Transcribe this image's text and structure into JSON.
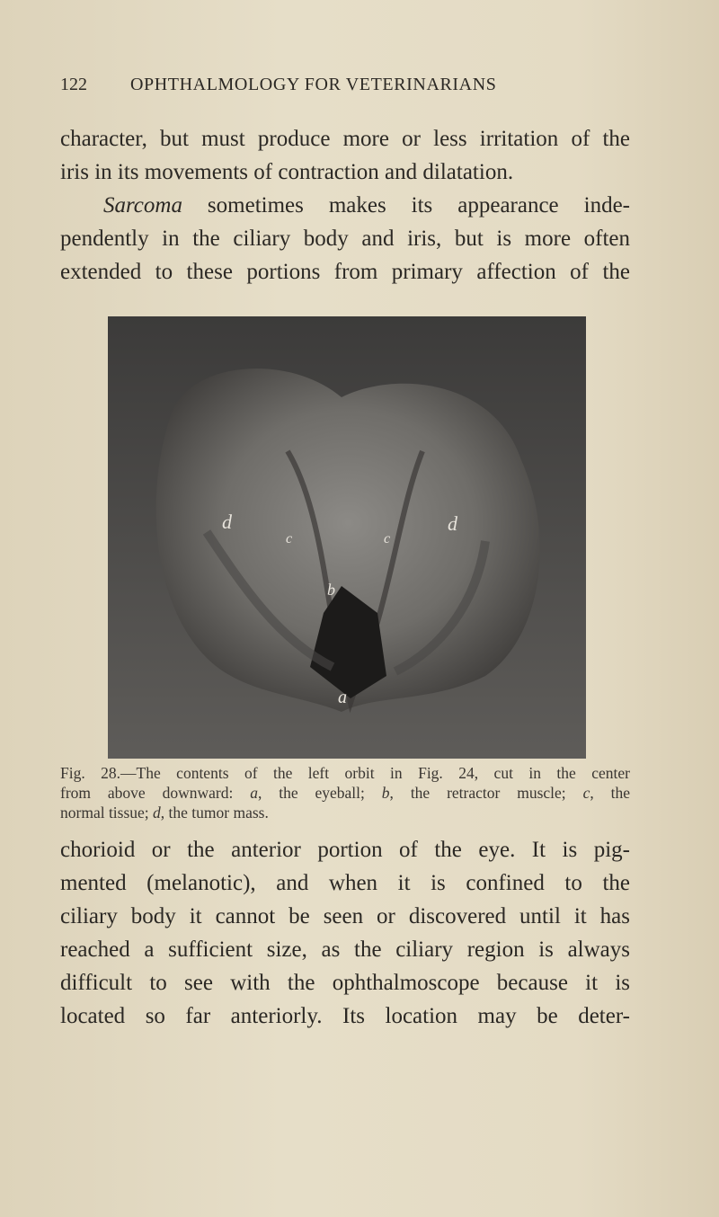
{
  "header": {
    "page_number": "122",
    "running_title": "OPHTHALMOLOGY FOR VETERINARIANS"
  },
  "body_top": {
    "lines": [
      [
        "character, but must produce more or less irritation of the"
      ],
      [
        "iris in its movements of contraction and dilatation."
      ],
      [
        {
          "text": "Sarcoma",
          "italic": true
        },
        " sometimes makes its appearance inde-"
      ],
      [
        "pendently in the ciliary body and iris, but is more often"
      ],
      [
        "extended to these portions from primary affection of the"
      ]
    ]
  },
  "figure": {
    "labels": [
      "d",
      "c",
      "c",
      "d",
      "b",
      "a"
    ],
    "caption": {
      "lines": [
        [
          "Fig. 28.—The contents of the left orbit in Fig. 24, cut in the center"
        ],
        [
          "from above downward: ",
          {
            "text": "a",
            "italic": true
          },
          ", the eyeball; ",
          {
            "text": "b",
            "italic": true
          },
          ", the retractor muscle; ",
          {
            "text": "c",
            "italic": true
          },
          ", the"
        ],
        [
          "normal tissue; ",
          {
            "text": "d",
            "italic": true
          },
          ", the tumor mass."
        ]
      ]
    }
  },
  "body_bottom": {
    "lines": [
      [
        "chorioid or the anterior portion of the eye.  It is pig-"
      ],
      [
        "mented (melanotic), and when it is confined to the"
      ],
      [
        "ciliary body it cannot be seen or discovered until it has"
      ],
      [
        "reached a sufficient size, as the ciliary region is always"
      ],
      [
        "difficult to see with the ophthalmoscope because it is"
      ],
      [
        "located so far anteriorly.  Its location may be deter-"
      ]
    ]
  }
}
